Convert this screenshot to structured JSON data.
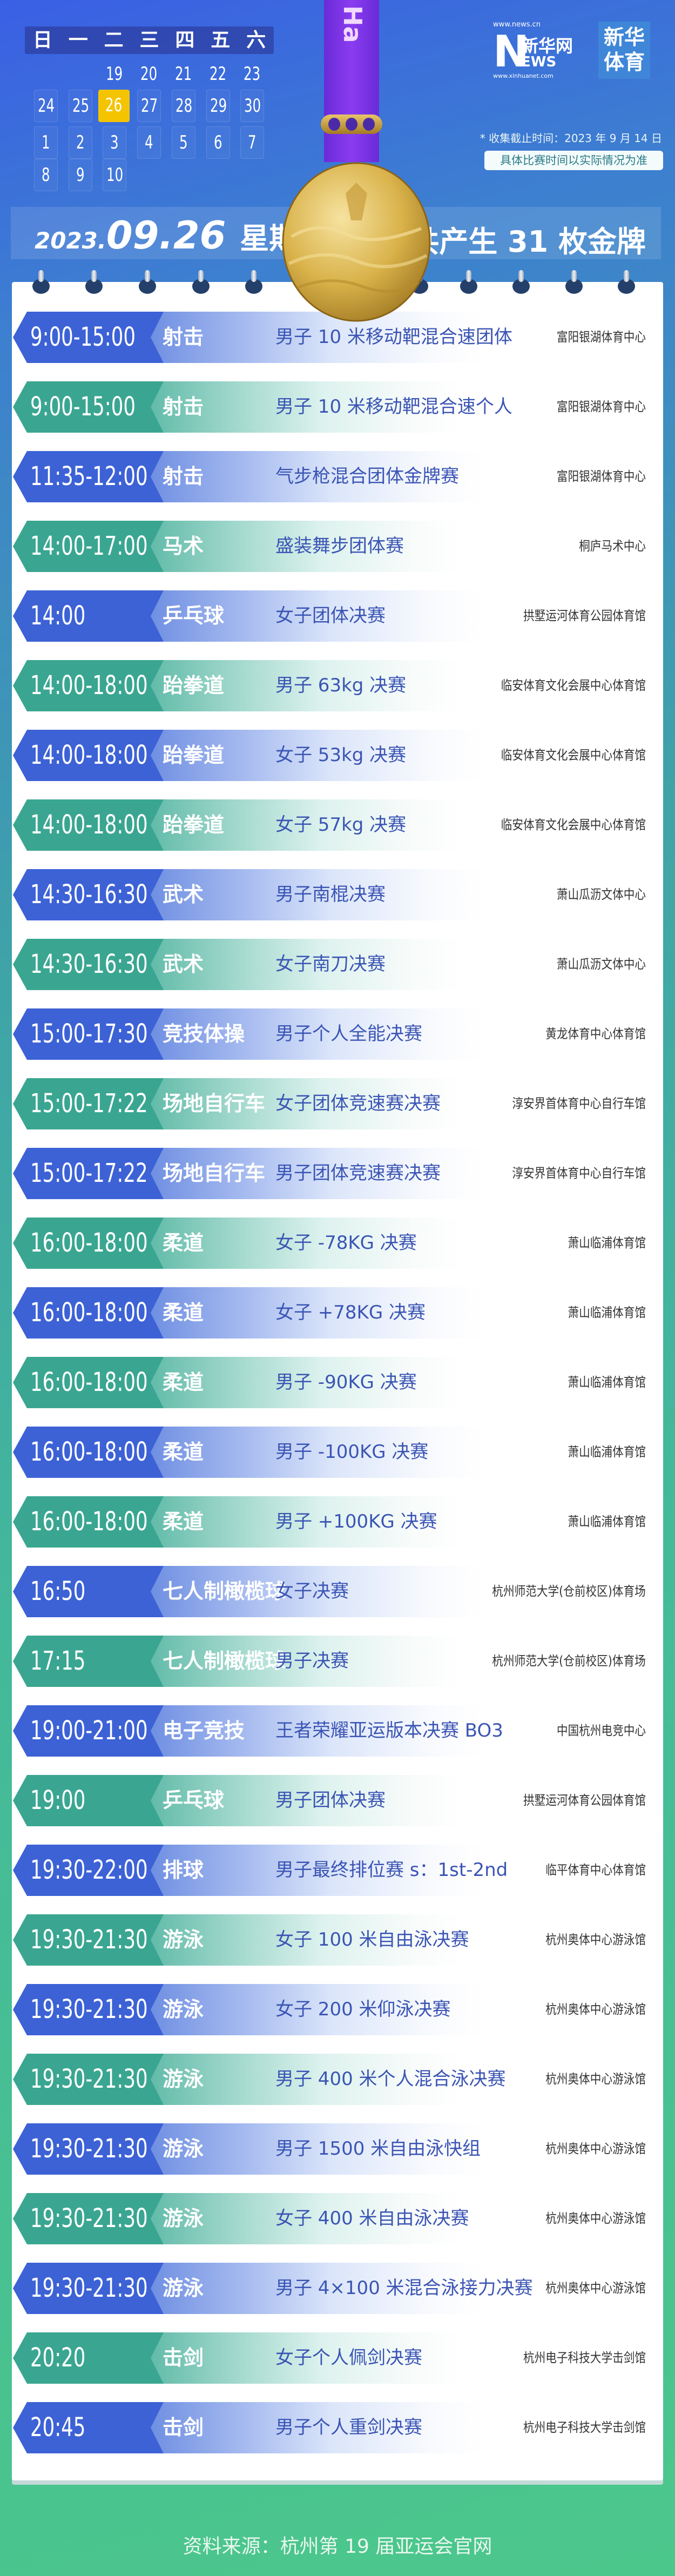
{
  "colors": {
    "blue": "#3d62d6",
    "teal": "#3aa691",
    "today": "#f4c400",
    "event_text": "#3b55b4",
    "medal_gold": "#d9b24a",
    "ribbon_purple": "#7a34e8"
  },
  "calendar": {
    "weekdays": [
      "日",
      "一",
      "二",
      "三",
      "四",
      "五",
      "六"
    ],
    "weeks": [
      [
        "",
        "",
        "19",
        "20",
        "21",
        "22",
        "23"
      ],
      [
        "24",
        "25",
        "26",
        "27",
        "28",
        "29",
        "30"
      ],
      [
        "1",
        "2",
        "3",
        "4",
        "5",
        "6",
        "7"
      ],
      [
        "8",
        "9",
        "10",
        "",
        "",
        "",
        ""
      ]
    ],
    "selected": "26"
  },
  "ribbon_text": "Ha",
  "logo": {
    "url_top": "www.news.cn",
    "letter": "N",
    "name": "新华网",
    "ews": "EWS",
    "url_bottom": "www.xinhuanet.com",
    "badge_line1": "新华",
    "badge_line2": "体育"
  },
  "notes": {
    "cutoff": "* 收集截止时间：2023 年 9 月 14 日",
    "disclaimer": "具体比赛时间以实际情况为准"
  },
  "date": {
    "year": "2023.",
    "month_day": "09.26",
    "weekday": "星期二",
    "gold_medals": "共产生 31 枚金牌"
  },
  "events": [
    {
      "time": "9:00-15:00",
      "sport": "射击",
      "event": "男子 10 米移动靶混合速团体",
      "venue": "富阳银湖体育中心",
      "theme": "blue"
    },
    {
      "time": "9:00-15:00",
      "sport": "射击",
      "event": "男子 10 米移动靶混合速个人",
      "venue": "富阳银湖体育中心",
      "theme": "teal"
    },
    {
      "time": "11:35-12:00",
      "sport": "射击",
      "event": "气步枪混合团体金牌赛",
      "venue": "富阳银湖体育中心",
      "theme": "blue"
    },
    {
      "time": "14:00-17:00",
      "sport": "马术",
      "event": "盛装舞步团体赛",
      "venue": "桐庐马术中心",
      "theme": "teal"
    },
    {
      "time": "14:00",
      "sport": "乒乓球",
      "event": "女子团体决赛",
      "venue": "拱墅运河体育公园体育馆",
      "theme": "blue"
    },
    {
      "time": "14:00-18:00",
      "sport": "跆拳道",
      "event": "男子 63kg 决赛",
      "venue": "临安体育文化会展中心体育馆",
      "theme": "teal"
    },
    {
      "time": "14:00-18:00",
      "sport": "跆拳道",
      "event": "女子 53kg 决赛",
      "venue": "临安体育文化会展中心体育馆",
      "theme": "blue"
    },
    {
      "time": "14:00-18:00",
      "sport": "跆拳道",
      "event": "女子 57kg 决赛",
      "venue": "临安体育文化会展中心体育馆",
      "theme": "teal"
    },
    {
      "time": "14:30-16:30",
      "sport": "武术",
      "event": "男子南棍决赛",
      "venue": "萧山瓜沥文体中心",
      "theme": "blue"
    },
    {
      "time": "14:30-16:30",
      "sport": "武术",
      "event": "女子南刀决赛",
      "venue": "萧山瓜沥文体中心",
      "theme": "teal"
    },
    {
      "time": "15:00-17:30",
      "sport": "竞技体操",
      "event": "男子个人全能决赛",
      "venue": "黄龙体育中心体育馆",
      "theme": "blue"
    },
    {
      "time": "15:00-17:22",
      "sport": "场地自行车",
      "event": "女子团体竞速赛决赛",
      "venue": "淳安界首体育中心自行车馆",
      "theme": "teal"
    },
    {
      "time": "15:00-17:22",
      "sport": "场地自行车",
      "event": "男子团体竞速赛决赛",
      "venue": "淳安界首体育中心自行车馆",
      "theme": "blue"
    },
    {
      "time": "16:00-18:00",
      "sport": "柔道",
      "event": "女子 -78KG 决赛",
      "venue": "萧山临浦体育馆",
      "theme": "teal"
    },
    {
      "time": "16:00-18:00",
      "sport": "柔道",
      "event": "女子 +78KG 决赛",
      "venue": "萧山临浦体育馆",
      "theme": "blue"
    },
    {
      "time": "16:00-18:00",
      "sport": "柔道",
      "event": "男子 -90KG 决赛",
      "venue": "萧山临浦体育馆",
      "theme": "teal"
    },
    {
      "time": "16:00-18:00",
      "sport": "柔道",
      "event": "男子 -100KG 决赛",
      "venue": "萧山临浦体育馆",
      "theme": "blue"
    },
    {
      "time": "16:00-18:00",
      "sport": "柔道",
      "event": "男子 +100KG 决赛",
      "venue": "萧山临浦体育馆",
      "theme": "teal"
    },
    {
      "time": "16:50",
      "sport": "七人制橄榄球",
      "event": "女子决赛",
      "venue": "杭州师范大学(仓前校区)体育场",
      "theme": "blue"
    },
    {
      "time": "17:15",
      "sport": "七人制橄榄球",
      "event": "男子决赛",
      "venue": "杭州师范大学(仓前校区)体育场",
      "theme": "teal"
    },
    {
      "time": "19:00-21:00",
      "sport": "电子竞技",
      "event": "王者荣耀亚运版本决赛 BO3",
      "venue": "中国杭州电竞中心",
      "theme": "blue"
    },
    {
      "time": "19:00",
      "sport": "乒乓球",
      "event": "男子团体决赛",
      "venue": "拱墅运河体育公园体育馆",
      "theme": "teal"
    },
    {
      "time": "19:30-22:00",
      "sport": "排球",
      "event": "男子最终排位赛 s：1st-2nd",
      "venue": "临平体育中心体育馆",
      "theme": "blue"
    },
    {
      "time": "19:30-21:30",
      "sport": "游泳",
      "event": "女子 100 米自由泳决赛",
      "venue": "杭州奥体中心游泳馆",
      "theme": "teal"
    },
    {
      "time": "19:30-21:30",
      "sport": "游泳",
      "event": "女子 200 米仰泳决赛",
      "venue": "杭州奥体中心游泳馆",
      "theme": "blue"
    },
    {
      "time": "19:30-21:30",
      "sport": "游泳",
      "event": "男子 400 米个人混合泳决赛",
      "venue": "杭州奥体中心游泳馆",
      "theme": "teal"
    },
    {
      "time": "19:30-21:30",
      "sport": "游泳",
      "event": "男子 1500 米自由泳快组",
      "venue": "杭州奥体中心游泳馆",
      "theme": "blue"
    },
    {
      "time": "19:30-21:30",
      "sport": "游泳",
      "event": "女子 400 米自由泳决赛",
      "venue": "杭州奥体中心游泳馆",
      "theme": "teal"
    },
    {
      "time": "19:30-21:30",
      "sport": "游泳",
      "event": "男子 4×100 米混合泳接力决赛",
      "venue": "杭州奥体中心游泳馆",
      "theme": "blue"
    },
    {
      "time": "20:20",
      "sport": "击剑",
      "event": "女子个人佩剑决赛",
      "venue": "杭州电子科技大学击剑馆",
      "theme": "teal"
    },
    {
      "time": "20:45",
      "sport": "击剑",
      "event": "男子个人重剑决赛",
      "venue": "杭州电子科技大学击剑馆",
      "theme": "blue"
    }
  ],
  "footer": {
    "source": "资料来源：杭州第 19 届亚运会官网"
  }
}
